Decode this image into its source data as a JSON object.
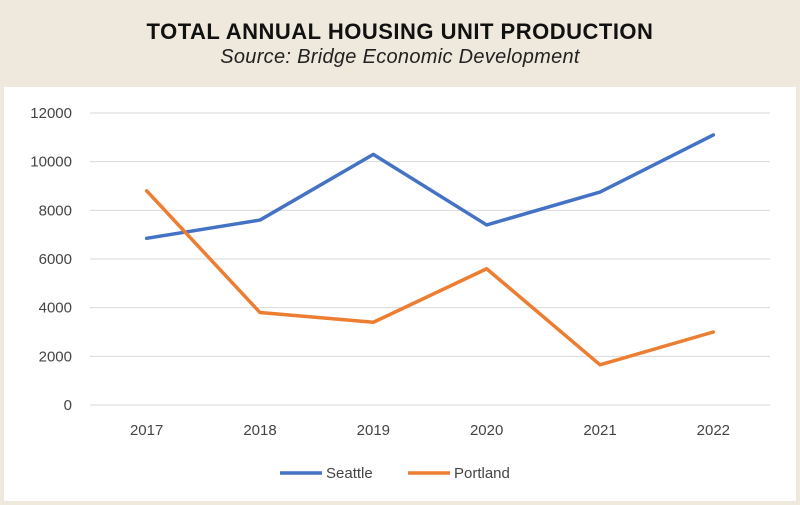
{
  "header": {
    "title": "TOTAL ANNUAL HOUSING UNIT PRODUCTION",
    "subtitle": "Source: Bridge Economic Development"
  },
  "chart_data": {
    "type": "line",
    "title": "TOTAL ANNUAL HOUSING UNIT PRODUCTION",
    "subtitle": "Source: Bridge Economic Development",
    "categories": [
      "2017",
      "2018",
      "2019",
      "2020",
      "2021",
      "2022"
    ],
    "series": [
      {
        "name": "Seattle",
        "color": "#4472c4",
        "values": [
          6850,
          7600,
          10300,
          7400,
          8750,
          11100
        ]
      },
      {
        "name": "Portland",
        "color": "#ed7d31",
        "values": [
          8800,
          3800,
          3400,
          5600,
          1650,
          3000
        ]
      }
    ],
    "yticks": [
      "0",
      "2000",
      "4000",
      "6000",
      "8000",
      "10000",
      "12000"
    ],
    "ylim": [
      0,
      12000
    ],
    "xlabel": "",
    "ylabel": "",
    "grid": true,
    "legend": "bottom"
  }
}
